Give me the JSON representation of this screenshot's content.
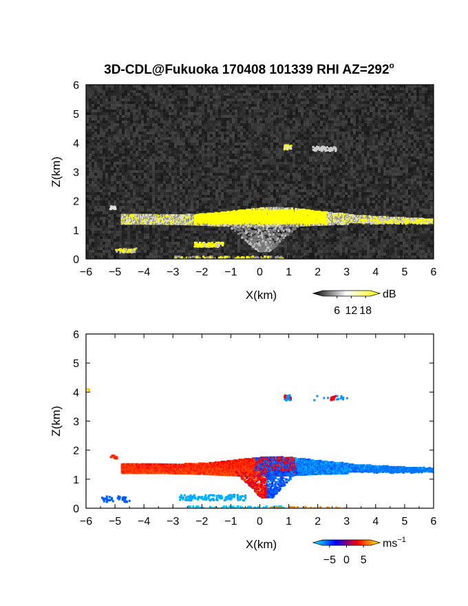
{
  "title": "3D-CDL@Fukuoka 170408 101339 RHI AZ=292",
  "title_superscript": "o",
  "chart_data": [
    {
      "type": "heatmap",
      "name": "backscatter",
      "xlabel": "X(km)",
      "ylabel": "Z(km)",
      "xlim": [
        -6,
        6
      ],
      "ylim": [
        0,
        6
      ],
      "xticks": [
        "−6",
        "−5",
        "−4",
        "−3",
        "−2",
        "−1",
        "0",
        "1",
        "2",
        "3",
        "4",
        "5",
        "6"
      ],
      "yticks": [
        "0",
        "1",
        "2",
        "3",
        "4",
        "5",
        "6"
      ],
      "background": "noise (dark gray)",
      "colorbar": {
        "unit": "dB",
        "ticks": [
          "6",
          "12",
          "18"
        ],
        "range": [
          0,
          20
        ],
        "colors": [
          "#000000",
          "#ffffff",
          "#ffff00"
        ]
      },
      "features": [
        {
          "x": [
            -4.8,
            6.0
          ],
          "z": [
            1.2,
            1.9
          ],
          "desc": "main layer, strongest near x=-2..2"
        },
        {
          "x": [
            -0.5,
            1.0
          ],
          "z": [
            0.4,
            1.2
          ],
          "desc": "descending plume"
        },
        {
          "x": [
            0.8,
            3.0
          ],
          "z": [
            3.7,
            4.0
          ],
          "desc": "elevated echoes"
        },
        {
          "x": [
            -5.0,
            1.0
          ],
          "z": [
            0.0,
            0.6
          ],
          "desc": "low-level echoes"
        }
      ]
    },
    {
      "type": "heatmap",
      "name": "doppler_velocity",
      "xlabel": "X(km)",
      "ylabel": "Z(km)",
      "xlim": [
        -6,
        6
      ],
      "ylim": [
        0,
        6
      ],
      "xticks": [
        "−6",
        "−5",
        "−4",
        "−3",
        "−2",
        "−1",
        "0",
        "1",
        "2",
        "3",
        "4",
        "5",
        "6"
      ],
      "yticks": [
        "0",
        "1",
        "2",
        "3",
        "4",
        "5",
        "6"
      ],
      "colorbar": {
        "unit": "ms",
        "unit_exponent": "−1",
        "ticks": [
          "−5",
          "0",
          "5"
        ],
        "range": [
          -7,
          7
        ],
        "colors": [
          "#00ffff",
          "#0000ff",
          "#ff0000",
          "#ffff00"
        ]
      },
      "features": [
        {
          "x": [
            -4.8,
            0.0
          ],
          "z": [
            1.1,
            1.9
          ],
          "velocity_ms": 3,
          "desc": "orange/red layer (receding)"
        },
        {
          "x": [
            0.0,
            6.0
          ],
          "z": [
            1.2,
            1.9
          ],
          "velocity_ms": -5,
          "desc": "blue layer (approaching)"
        },
        {
          "x": [
            0.8,
            3.0
          ],
          "z": [
            3.7,
            4.0
          ],
          "velocity_ms": -5,
          "desc": "elevated echoes"
        },
        {
          "x": [
            -5.5,
            1.0
          ],
          "z": [
            0.0,
            0.6
          ],
          "velocity_ms": -5,
          "desc": "low-level echoes"
        }
      ]
    }
  ]
}
